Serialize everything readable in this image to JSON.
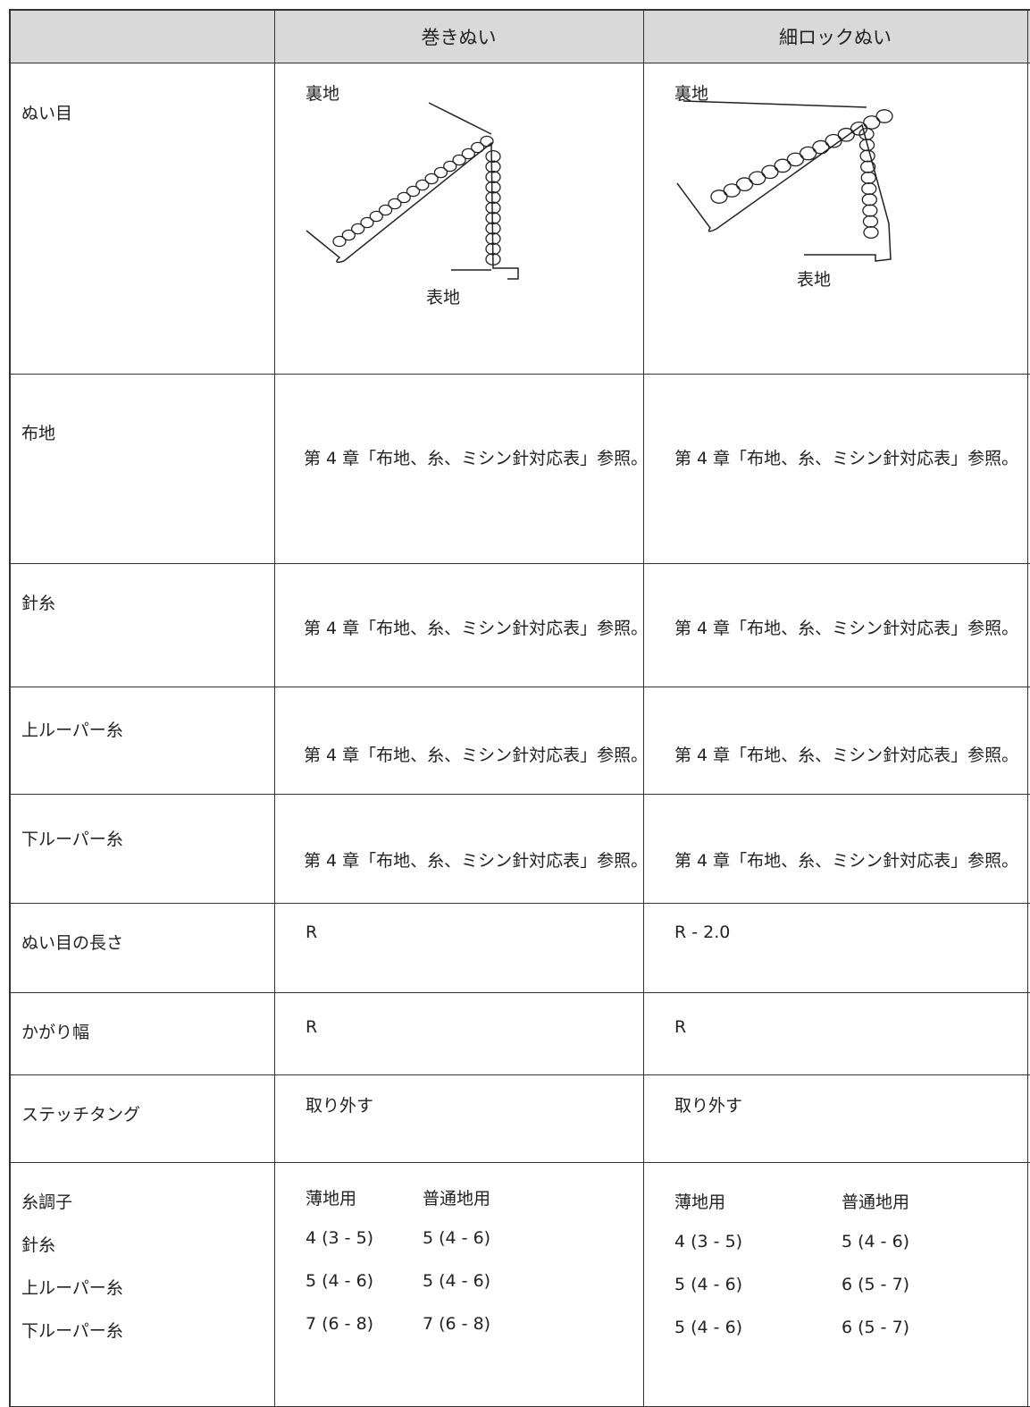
{
  "table": {
    "header": {
      "columns": [
        "巻きぬい",
        "細ロックぬい"
      ]
    },
    "rows": [
      {
        "label": "ぬい目",
        "cells": [
          {
            "top_label": "裏地",
            "bottom_label": "表地"
          },
          {
            "top_label": "裏地",
            "bottom_label": "表地"
          }
        ]
      },
      {
        "label": "布地",
        "cells": [
          "第 4 章「布地、糸、ミシン針対応表」参照。",
          "第 4 章「布地、糸、ミシン針対応表」参照。"
        ]
      },
      {
        "label": "針糸",
        "cells": [
          "第 4 章「布地、糸、ミシン針対応表」参照。",
          "第 4 章「布地、糸、ミシン針対応表」参照。"
        ]
      },
      {
        "label": "上ルーパー糸",
        "cells": [
          "第 4 章「布地、糸、ミシン針対応表」参照。",
          "第 4 章「布地、糸、ミシン針対応表」参照。"
        ]
      },
      {
        "label": "下ルーパー糸",
        "cells": [
          "第 4 章「布地、糸、ミシン針対応表」参照。",
          "第 4 章「布地、糸、ミシン針対応表」参照。"
        ]
      },
      {
        "label": "ぬい目の長さ",
        "cells": [
          "R",
          "R - 2.0"
        ]
      },
      {
        "label": "かがり幅",
        "cells": [
          "R",
          "R"
        ]
      },
      {
        "label": "ステッチタング",
        "cells": [
          "取り外す",
          "取り外す"
        ]
      }
    ],
    "tension": {
      "label_lines": [
        "糸調子",
        "針糸",
        "上ルーパー糸",
        "下ルーパー糸"
      ],
      "cells": [
        {
          "headers": [
            "薄地用",
            "普通地用"
          ],
          "rows": [
            [
              "4 (3 - 5)",
              "5 (4 - 6)"
            ],
            [
              "5 (4 - 6)",
              "5 (4 - 6)"
            ],
            [
              "7 (6 - 8)",
              "7 (6 - 8)"
            ]
          ]
        },
        {
          "headers": [
            "薄地用",
            "普通地用"
          ],
          "rows": [
            [
              "4 (3 - 5)",
              "5 (4 - 6)"
            ],
            [
              "5 (4 - 6)",
              "6 (5 - 7)"
            ],
            [
              "5 (4 - 6)",
              "6 (5 - 7)"
            ]
          ]
        }
      ]
    }
  }
}
